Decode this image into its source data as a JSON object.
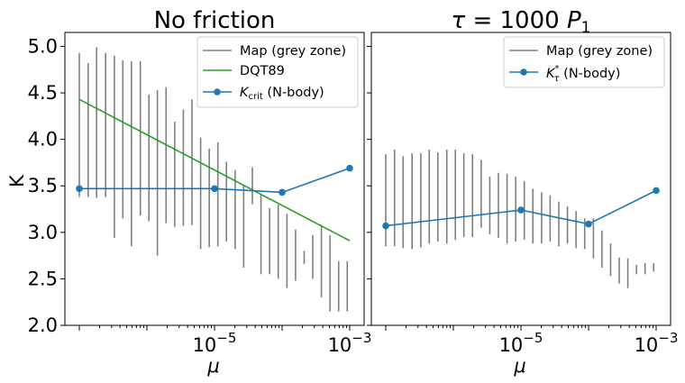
{
  "chart_data": [
    {
      "type": "line",
      "title": "No friction",
      "xlabel": "μ",
      "ylabel": "K",
      "xscale": "log",
      "xlim": [
        1e-07,
        0.0015
      ],
      "ylim": [
        2.0,
        5.15
      ],
      "x_ticks": [
        {
          "value": 1e-05,
          "base": "10",
          "exp": "−5"
        },
        {
          "value": 0.001,
          "base": "10",
          "exp": "−3"
        }
      ],
      "y_ticks": [
        "2.0",
        "2.5",
        "3.0",
        "3.5",
        "4.0",
        "4.5",
        "5.0"
      ],
      "grid": false,
      "legend_position": "top-right",
      "series": [
        {
          "name": "Map (grey zone)",
          "kind": "vertical-range",
          "color": "#7f7f7f",
          "x": [
            1e-07,
            1.35e-07,
            1.8e-07,
            2.45e-07,
            3.3e-07,
            4.4e-07,
            5.9e-07,
            8e-07,
            1.07e-06,
            1.43e-06,
            1.92e-06,
            2.58e-06,
            3.46e-06,
            4.64e-06,
            6.23e-06,
            8.36e-06,
            1.12e-05,
            1.5e-05,
            2.02e-05,
            2.7e-05,
            3.63e-05,
            4.87e-05,
            6.53e-05,
            8.77e-05,
            0.000118,
            0.000158,
            0.000212,
            0.000284,
            0.000381,
            0.000511,
            0.000686,
            0.00092
          ],
          "low": [
            3.38,
            3.38,
            3.37,
            3.38,
            2.94,
            3.15,
            2.85,
            3.18,
            3.12,
            2.75,
            3.1,
            3.06,
            3.07,
            3.08,
            2.82,
            2.84,
            2.85,
            2.9,
            2.82,
            2.62,
            3.3,
            2.55,
            2.55,
            2.5,
            2.4,
            2.48,
            2.66,
            2.5,
            2.3,
            2.15,
            2.15,
            2.15
          ],
          "high": [
            4.93,
            4.82,
            4.99,
            4.93,
            4.9,
            4.85,
            4.84,
            4.84,
            4.48,
            4.53,
            4.56,
            4.19,
            4.32,
            4.43,
            4.02,
            3.9,
            3.97,
            3.76,
            3.67,
            3.51,
            3.7,
            3.41,
            3.26,
            3.3,
            3.2,
            3.03,
            2.8,
            2.97,
            3.08,
            2.97,
            2.69,
            2.69
          ]
        },
        {
          "name": "DQT89",
          "kind": "line",
          "color": "#2ca02c",
          "x": [
            1e-07,
            0.001
          ],
          "y": [
            4.43,
            2.91
          ]
        },
        {
          "name": "K_crit (N-body)",
          "name_main": "K",
          "name_sub": "crit",
          "name_suffix": " (N-body)",
          "kind": "line-marker",
          "color": "#1f77b4",
          "x": [
            1e-07,
            1e-05,
            0.0001,
            0.001
          ],
          "y": [
            3.47,
            3.47,
            3.43,
            3.69
          ]
        }
      ]
    },
    {
      "type": "line",
      "title": "τ = 1000 P1",
      "title_parts": {
        "tau": "τ",
        "eq": " = 1000 ",
        "P": "P",
        "sub": "1"
      },
      "xlabel": "μ",
      "xscale": "log",
      "xlim": [
        1e-07,
        0.0015
      ],
      "ylim": [
        2.0,
        5.15
      ],
      "x_ticks": [
        {
          "value": 1e-05,
          "base": "10",
          "exp": "−5"
        },
        {
          "value": 0.001,
          "base": "10",
          "exp": "−3"
        }
      ],
      "y_ticks_labeled": false,
      "grid": false,
      "legend_position": "top-right",
      "series": [
        {
          "name": "Map (grey zone)",
          "kind": "vertical-range",
          "color": "#7f7f7f",
          "x": [
            1e-07,
            1.35e-07,
            1.8e-07,
            2.45e-07,
            3.3e-07,
            4.4e-07,
            5.9e-07,
            8e-07,
            1.07e-06,
            1.43e-06,
            1.92e-06,
            2.58e-06,
            3.46e-06,
            4.64e-06,
            6.23e-06,
            8.36e-06,
            1.12e-05,
            1.5e-05,
            2.02e-05,
            2.7e-05,
            3.63e-05,
            4.87e-05,
            6.53e-05,
            8.77e-05,
            0.000118,
            0.000158,
            0.000212,
            0.000284,
            0.000381,
            0.000511,
            0.000686,
            0.00092
          ],
          "low": [
            2.85,
            2.85,
            2.83,
            2.82,
            2.84,
            2.88,
            2.9,
            2.88,
            2.92,
            2.95,
            2.95,
            3.05,
            2.98,
            2.94,
            2.88,
            2.9,
            2.92,
            2.88,
            2.88,
            2.9,
            2.85,
            2.88,
            2.83,
            2.82,
            2.72,
            2.62,
            2.53,
            2.45,
            2.4,
            2.55,
            2.55,
            2.58
          ],
          "high": [
            3.84,
            3.89,
            3.82,
            3.85,
            3.85,
            3.89,
            3.86,
            3.89,
            3.89,
            3.85,
            3.84,
            3.78,
            3.6,
            3.64,
            3.63,
            3.6,
            3.55,
            3.47,
            3.43,
            3.4,
            3.33,
            3.28,
            3.23,
            3.15,
            3.15,
            3.02,
            2.88,
            2.73,
            2.72,
            2.65,
            2.67,
            2.67
          ]
        },
        {
          "name": "K_τ* (N-body)",
          "name_main": "K",
          "name_sub": "τ",
          "name_sup": "*",
          "name_suffix": " (N-body)",
          "kind": "line-marker",
          "color": "#1f77b4",
          "x": [
            1e-07,
            1e-05,
            0.0001,
            0.001
          ],
          "y": [
            3.07,
            3.24,
            3.09,
            3.45
          ]
        }
      ]
    }
  ]
}
